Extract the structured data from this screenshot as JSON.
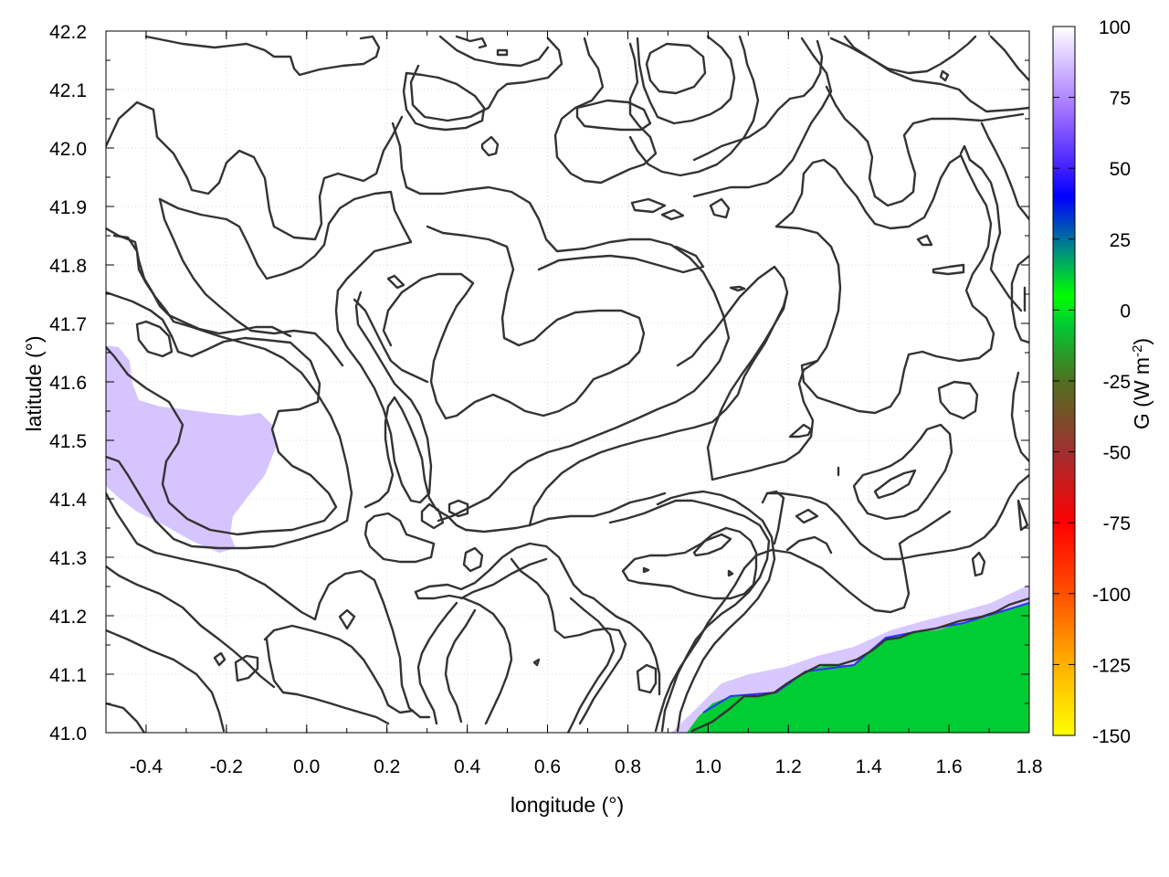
{
  "chart_data": {
    "type": "heatmap",
    "title": "",
    "xlabel": "longitude (°)",
    "ylabel": "latitude (°)",
    "xlim": [
      -0.5,
      1.8
    ],
    "ylim": [
      41.0,
      42.2
    ],
    "x_ticks": [
      "-0.4",
      "-0.2",
      "0.0",
      "0.2",
      "0.4",
      "0.6",
      "0.8",
      "1.0",
      "1.2",
      "1.4",
      "1.6",
      "1.8"
    ],
    "y_ticks": [
      "41.0",
      "41.1",
      "41.2",
      "41.3",
      "41.4",
      "41.5",
      "41.6",
      "41.7",
      "41.8",
      "41.9",
      "42.0",
      "42.1",
      "42.2"
    ],
    "grid": true,
    "colorbar": {
      "label": "G (W m-2)",
      "range": [
        -150,
        100
      ],
      "ticks": [
        "100",
        "75",
        "50",
        "25",
        "0",
        "-25",
        "-50",
        "-75",
        "-100",
        "-125",
        "-150"
      ],
      "colors": [
        "#ffff00",
        "#ffa500",
        "#ff0000",
        "#b22222",
        "#228b22",
        "#00ff00",
        "#1e90ff",
        "#0000ff",
        "#a070ff",
        "#ffffff"
      ]
    },
    "fields": [
      {
        "region": "sea (Mediterranean, south-east corner)",
        "longitude": [
          0.92,
          1.8
        ],
        "latitude": [
          41.0,
          41.25
        ],
        "value": 0,
        "color": "#00cc33"
      },
      {
        "region": "sea edge fringe",
        "longitude": [
          0.95,
          1.8
        ],
        "latitude": [
          41.05,
          41.25
        ],
        "value": 80,
        "color": "#c8b0ff"
      },
      {
        "region": "inland western patch",
        "longitude": [
          -0.5,
          -0.08
        ],
        "latitude": [
          41.3,
          41.65
        ],
        "value": 80,
        "color": "#c8b0ff"
      },
      {
        "region": "background land",
        "value": 100,
        "color": "#ffffff"
      }
    ],
    "contours": "topographic elevation isolines (unlabeled)"
  },
  "colorbar_label": {
    "main": "G (W m",
    "sup": "-2",
    "end": ")"
  }
}
